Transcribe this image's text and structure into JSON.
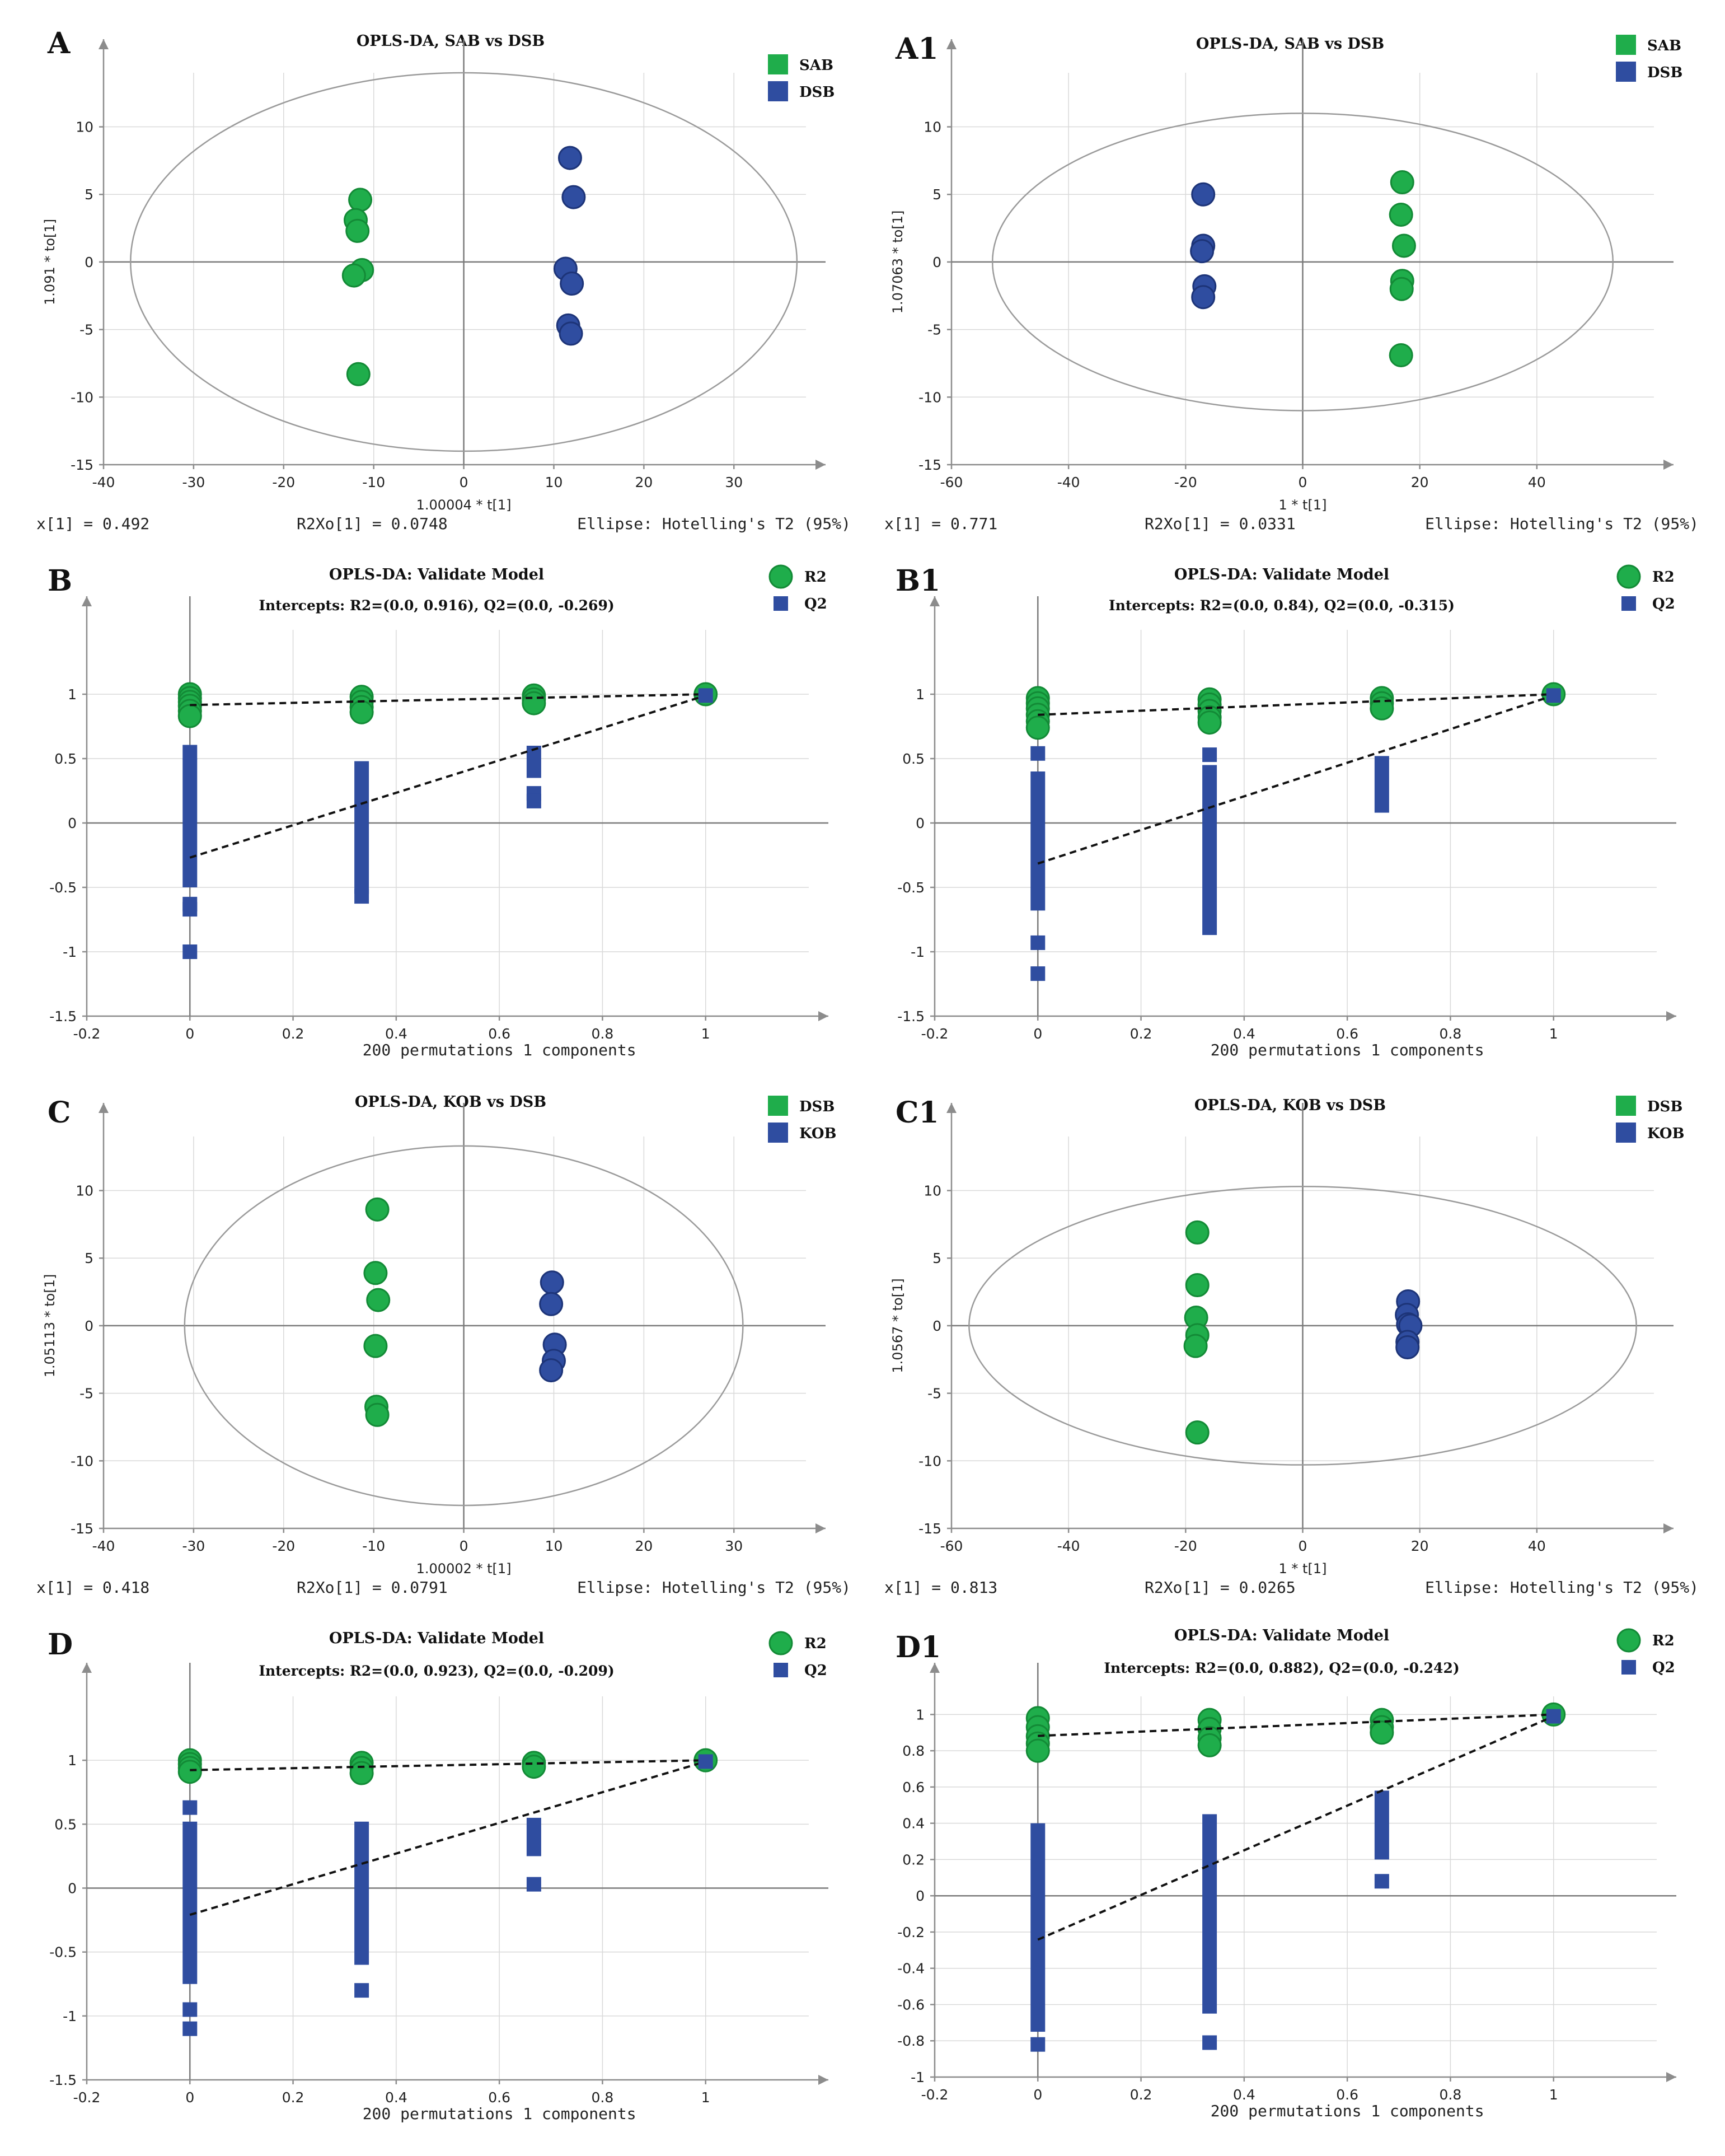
{
  "colors": {
    "green": "#1fad4b",
    "green_edge": "#138a36",
    "blue": "#2f4da0",
    "blue_edge": "#1d3478"
  },
  "chart_data": [
    {
      "id": "A",
      "type": "scatter",
      "panel_label": "A",
      "title": "OPLS-DA, SAB vs DSB",
      "xlabel": "1.00004 * t[1]",
      "ylabel": "1.091 * to[1]",
      "xlim": [
        -40,
        38
      ],
      "ylim": [
        -15,
        14
      ],
      "xticks": [
        -40,
        -30,
        -20,
        -10,
        0,
        10,
        20,
        30
      ],
      "yticks": [
        -15,
        -10,
        -5,
        0,
        5,
        10
      ],
      "ellipse": {
        "rx": 37,
        "ry": 14
      },
      "legend": [
        {
          "label": "SAB",
          "color": "green"
        },
        {
          "label": "DSB",
          "color": "blue"
        }
      ],
      "series": [
        {
          "name": "SAB",
          "color": "green",
          "points": [
            [
              -11.5,
              4.6
            ],
            [
              -12,
              3.1
            ],
            [
              -11.8,
              2.3
            ],
            [
              -11.3,
              -0.6
            ],
            [
              -12.2,
              -1
            ],
            [
              -11.7,
              -8.3
            ]
          ]
        },
        {
          "name": "DSB",
          "color": "blue",
          "points": [
            [
              11.8,
              7.7
            ],
            [
              12.2,
              4.8
            ],
            [
              11.3,
              -0.5
            ],
            [
              12,
              -1.6
            ],
            [
              11.6,
              -4.7
            ],
            [
              11.9,
              -5.3
            ]
          ]
        }
      ],
      "footer": {
        "left": "x[1] = 0.492",
        "mid": "R2Xo[1] = 0.0748",
        "right": "Ellipse: Hotelling's T2 (95%)"
      }
    },
    {
      "id": "A1",
      "type": "scatter",
      "panel_label": "A1",
      "title": "OPLS-DA, SAB vs DSB",
      "xlabel": "1 * t[1]",
      "ylabel": "1.07063 * to[1]",
      "xlim": [
        -60,
        60
      ],
      "ylim": [
        -15,
        14
      ],
      "xticks": [
        -60,
        -40,
        -20,
        0,
        20,
        40
      ],
      "yticks": [
        -15,
        -10,
        -5,
        0,
        5,
        10
      ],
      "ellipse": {
        "rx": 53,
        "ry": 11
      },
      "legend": [
        {
          "label": "SAB",
          "color": "green"
        },
        {
          "label": "DSB",
          "color": "blue"
        }
      ],
      "series": [
        {
          "name": "SAB",
          "color": "green",
          "points": [
            [
              17,
              5.9
            ],
            [
              16.8,
              3.5
            ],
            [
              17.3,
              1.2
            ],
            [
              17,
              -1.4
            ],
            [
              16.9,
              -2
            ],
            [
              16.8,
              -6.9
            ]
          ]
        },
        {
          "name": "DSB",
          "color": "blue",
          "points": [
            [
              -17,
              5
            ],
            [
              -17,
              1.2
            ],
            [
              -17.2,
              0.8
            ],
            [
              -16.8,
              -1.8
            ],
            [
              -17,
              -2.6
            ]
          ]
        }
      ],
      "footer": {
        "left": "x[1] = 0.771",
        "mid": "R2Xo[1] = 0.0331",
        "right": "Ellipse: Hotelling's T2 (95%)"
      }
    },
    {
      "id": "B",
      "type": "scatter",
      "panel_label": "B",
      "title": "OPLS-DA: Validate Model",
      "subtitle": "Intercepts: R2=(0.0, 0.916), Q2=(0.0, -0.269)",
      "xlabel": "200 permutations 1 components",
      "xlim": [
        -0.2,
        1.2
      ],
      "ylim": [
        -1.5,
        1.5
      ],
      "xticks": [
        -0.2,
        0,
        0.2,
        0.4,
        0.6,
        0.8,
        1
      ],
      "yticks": [
        -1.5,
        -1,
        -0.5,
        0,
        0.5,
        1
      ],
      "legend": [
        {
          "label": "R2",
          "color": "green"
        },
        {
          "label": "Q2",
          "color": "blue"
        }
      ],
      "r2_points": [
        [
          0,
          1
        ],
        [
          0,
          0.97
        ],
        [
          0,
          0.94
        ],
        [
          0,
          0.91
        ],
        [
          0,
          0.87
        ],
        [
          0,
          0.83
        ],
        [
          0.333,
          0.98
        ],
        [
          0.333,
          0.94
        ],
        [
          0.333,
          0.9
        ],
        [
          0.333,
          0.86
        ],
        [
          0.667,
          0.99
        ],
        [
          0.667,
          0.96
        ],
        [
          0.667,
          0.93
        ],
        [
          1,
          1
        ]
      ],
      "q2_points": [
        [
          0,
          0.55
        ],
        [
          0,
          -0.63
        ],
        [
          0,
          -0.67
        ],
        [
          0,
          -1
        ],
        [
          0.333,
          -0.57
        ],
        [
          0.667,
          0.23
        ],
        [
          0.667,
          0.17
        ],
        [
          1,
          0.99
        ]
      ],
      "q2_bars": [
        [
          0,
          -0.5,
          0.5
        ],
        [
          0.333,
          -0.55,
          0.48
        ],
        [
          0.667,
          0.35,
          0.6
        ]
      ],
      "r2_line": [
        [
          0,
          0.916
        ],
        [
          1,
          1
        ]
      ],
      "q2_line": [
        [
          0,
          -0.269
        ],
        [
          1,
          0.99
        ]
      ]
    },
    {
      "id": "B1",
      "type": "scatter",
      "panel_label": "B1",
      "title": "OPLS-DA: Validate Model",
      "subtitle": "Intercepts: R2=(0.0, 0.84), Q2=(0.0, -0.315)",
      "xlabel": "200 permutations 1 components",
      "xlim": [
        -0.2,
        1.2
      ],
      "ylim": [
        -1.5,
        1.5
      ],
      "xticks": [
        -0.2,
        0,
        0.2,
        0.4,
        0.6,
        0.8,
        1
      ],
      "yticks": [
        -1.5,
        -1,
        -0.5,
        0,
        0.5,
        1
      ],
      "legend": [
        {
          "label": "R2",
          "color": "green"
        },
        {
          "label": "Q2",
          "color": "blue"
        }
      ],
      "r2_points": [
        [
          0,
          0.97
        ],
        [
          0,
          0.93
        ],
        [
          0,
          0.89
        ],
        [
          0,
          0.84
        ],
        [
          0,
          0.79
        ],
        [
          0,
          0.74
        ],
        [
          0.333,
          0.96
        ],
        [
          0.333,
          0.92
        ],
        [
          0.333,
          0.87
        ],
        [
          0.333,
          0.82
        ],
        [
          0.333,
          0.78
        ],
        [
          0.667,
          0.97
        ],
        [
          0.667,
          0.93
        ],
        [
          0.667,
          0.89
        ],
        [
          1,
          1
        ]
      ],
      "q2_points": [
        [
          0,
          0.54
        ],
        [
          0,
          -0.93
        ],
        [
          0,
          -1.17
        ],
        [
          0.333,
          0.53
        ],
        [
          1,
          0.99
        ]
      ],
      "q2_bars": [
        [
          0,
          -0.68,
          0.4
        ],
        [
          0.333,
          -0.87,
          0.45
        ],
        [
          0.667,
          0.08,
          0.52
        ]
      ],
      "r2_line": [
        [
          0,
          0.84
        ],
        [
          1,
          1
        ]
      ],
      "q2_line": [
        [
          0,
          -0.315
        ],
        [
          1,
          0.99
        ]
      ]
    },
    {
      "id": "C",
      "type": "scatter",
      "panel_label": "C",
      "title": "OPLS-DA, KOB vs DSB",
      "xlabel": "1.00002 * t[1]",
      "ylabel": "1.05113 * to[1]",
      "xlim": [
        -40,
        38
      ],
      "ylim": [
        -15,
        14
      ],
      "xticks": [
        -40,
        -30,
        -20,
        -10,
        0,
        10,
        20,
        30
      ],
      "yticks": [
        -15,
        -10,
        -5,
        0,
        5,
        10
      ],
      "ellipse": {
        "rx": 31,
        "ry": 13.3
      },
      "legend": [
        {
          "label": "DSB",
          "color": "green"
        },
        {
          "label": "KOB",
          "color": "blue"
        }
      ],
      "series": [
        {
          "name": "DSB",
          "color": "green",
          "points": [
            [
              -9.6,
              8.6
            ],
            [
              -9.8,
              3.9
            ],
            [
              -9.5,
              1.9
            ],
            [
              -9.8,
              -1.5
            ],
            [
              -9.7,
              -6
            ],
            [
              -9.6,
              -6.6
            ]
          ]
        },
        {
          "name": "KOB",
          "color": "blue",
          "points": [
            [
              9.8,
              3.2
            ],
            [
              9.7,
              1.6
            ],
            [
              10.1,
              -1.4
            ],
            [
              10,
              -2.6
            ],
            [
              9.7,
              -3.3
            ]
          ]
        }
      ],
      "footer": {
        "left": "x[1] = 0.418",
        "mid": "R2Xo[1] = 0.0791",
        "right": "Ellipse: Hotelling's T2 (95%)"
      }
    },
    {
      "id": "C1",
      "type": "scatter",
      "panel_label": "C1",
      "title": "OPLS-DA, KOB vs DSB",
      "xlabel": "1 * t[1]",
      "ylabel": "1.0567 * to[1]",
      "xlim": [
        -60,
        60
      ],
      "ylim": [
        -15,
        14
      ],
      "xticks": [
        -60,
        -40,
        -20,
        0,
        20,
        40
      ],
      "yticks": [
        -15,
        -10,
        -5,
        0,
        5,
        10
      ],
      "ellipse": {
        "rx": 57,
        "ry": 10.3
      },
      "legend": [
        {
          "label": "DSB",
          "color": "green"
        },
        {
          "label": "KOB",
          "color": "blue"
        }
      ],
      "series": [
        {
          "name": "DSB",
          "color": "green",
          "points": [
            [
              -18,
              6.9
            ],
            [
              -18,
              3
            ],
            [
              -18.2,
              0.6
            ],
            [
              -18,
              -0.7
            ],
            [
              -18.3,
              -1.5
            ],
            [
              -18,
              -7.9
            ]
          ]
        },
        {
          "name": "KOB",
          "color": "blue",
          "points": [
            [
              18,
              1.8
            ],
            [
              17.8,
              0.8
            ],
            [
              18,
              0.1
            ],
            [
              18.4,
              0
            ],
            [
              17.9,
              -1.2
            ],
            [
              17.9,
              -1.6
            ]
          ]
        }
      ],
      "footer": {
        "left": "x[1] = 0.813",
        "mid": "R2Xo[1] = 0.0265",
        "right": "Ellipse: Hotelling's T2 (95%)"
      }
    },
    {
      "id": "D",
      "type": "scatter",
      "panel_label": "D",
      "title": "OPLS-DA: Validate Model",
      "subtitle": "Intercepts: R2=(0.0, 0.923), Q2=(0.0, -0.209)",
      "xlabel": "200 permutations 1 components",
      "xlim": [
        -0.2,
        1.2
      ],
      "ylim": [
        -1.5,
        1.5
      ],
      "xticks": [
        -0.2,
        0,
        0.2,
        0.4,
        0.6,
        0.8,
        1
      ],
      "yticks": [
        -1.5,
        -1,
        -0.5,
        0,
        0.5,
        1
      ],
      "legend": [
        {
          "label": "R2",
          "color": "green"
        },
        {
          "label": "Q2",
          "color": "blue"
        }
      ],
      "r2_points": [
        [
          0,
          1
        ],
        [
          0,
          0.97
        ],
        [
          0,
          0.94
        ],
        [
          0,
          0.91
        ],
        [
          0.333,
          0.98
        ],
        [
          0.333,
          0.94
        ],
        [
          0.333,
          0.9
        ],
        [
          0.667,
          0.98
        ],
        [
          0.667,
          0.95
        ],
        [
          1,
          1
        ]
      ],
      "q2_points": [
        [
          0,
          0.63
        ],
        [
          0,
          -0.95
        ],
        [
          0,
          -1.1
        ],
        [
          0.333,
          -0.8
        ],
        [
          0.667,
          0.03
        ],
        [
          1,
          0.99
        ]
      ],
      "q2_bars": [
        [
          0,
          -0.75,
          0.52
        ],
        [
          0.333,
          -0.6,
          0.52
        ],
        [
          0.667,
          0.25,
          0.55
        ]
      ],
      "r2_line": [
        [
          0,
          0.923
        ],
        [
          1,
          1
        ]
      ],
      "q2_line": [
        [
          0,
          -0.209
        ],
        [
          1,
          0.99
        ]
      ]
    },
    {
      "id": "D1",
      "type": "scatter",
      "panel_label": "D1",
      "title": "OPLS-DA: Validate Model",
      "subtitle": "Intercepts: R2=(0.0, 0.882), Q2=(0.0, -0.242)",
      "xlabel": "200 permutations 1 components",
      "xlim": [
        -0.2,
        1.2
      ],
      "ylim": [
        -1,
        1.1
      ],
      "xticks": [
        -0.2,
        0,
        0.2,
        0.4,
        0.6,
        0.8,
        1
      ],
      "yticks": [
        -1,
        -0.8,
        -0.6,
        -0.4,
        -0.2,
        0,
        0.2,
        0.4,
        0.6,
        0.8,
        1
      ],
      "legend": [
        {
          "label": "R2",
          "color": "green"
        },
        {
          "label": "Q2",
          "color": "blue"
        }
      ],
      "r2_points": [
        [
          0,
          0.98
        ],
        [
          0,
          0.93
        ],
        [
          0,
          0.88
        ],
        [
          0,
          0.84
        ],
        [
          0,
          0.8
        ],
        [
          0.333,
          0.97
        ],
        [
          0.333,
          0.92
        ],
        [
          0.333,
          0.87
        ],
        [
          0.333,
          0.83
        ],
        [
          0.667,
          0.97
        ],
        [
          0.667,
          0.93
        ],
        [
          0.667,
          0.9
        ],
        [
          1,
          1
        ]
      ],
      "q2_points": [
        [
          0,
          -0.82
        ],
        [
          0.333,
          -0.81
        ],
        [
          0.667,
          0.08
        ],
        [
          1,
          0.99
        ]
      ],
      "q2_bars": [
        [
          0,
          -0.75,
          0.4
        ],
        [
          0.333,
          -0.65,
          0.45
        ],
        [
          0.667,
          0.2,
          0.58
        ]
      ],
      "r2_line": [
        [
          0,
          0.882
        ],
        [
          1,
          1
        ]
      ],
      "q2_line": [
        [
          0,
          -0.242
        ],
        [
          1,
          0.99
        ]
      ]
    }
  ]
}
